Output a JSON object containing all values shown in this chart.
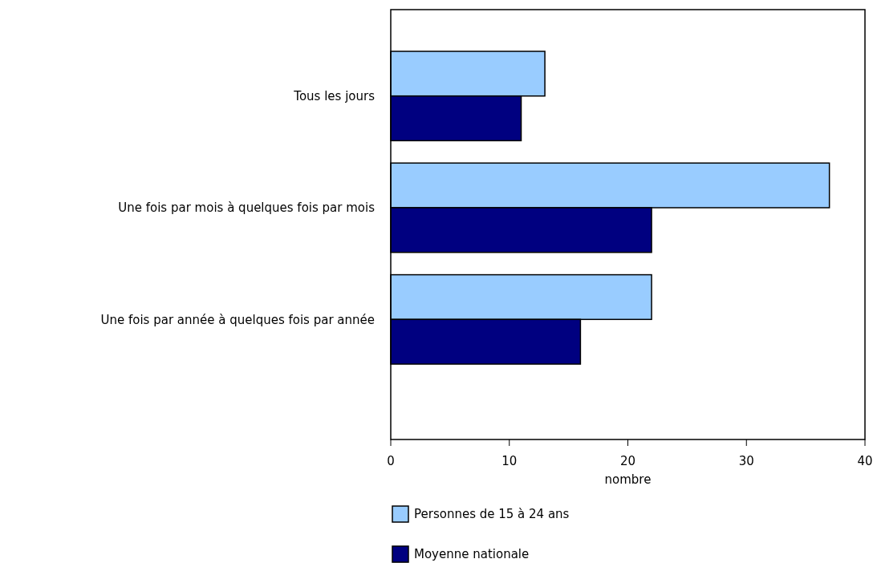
{
  "chart_data": {
    "type": "bar",
    "orientation": "horizontal",
    "xlabel": "nombre",
    "categories": [
      "Tous les jours",
      "Une fois par mois à quelques fois par mois",
      "Une fois par année à quelques fois par année"
    ],
    "series": [
      {
        "name": "Personnes de 15 à 24 ans",
        "color": "#99ccff",
        "values": [
          13,
          37,
          22
        ]
      },
      {
        "name": "Moyenne nationale",
        "color": "#000080",
        "values": [
          11,
          22,
          16
        ]
      }
    ],
    "xlim": [
      0,
      40
    ],
    "xticks": [
      0,
      10,
      20,
      30,
      40
    ],
    "legend": "bottom"
  }
}
